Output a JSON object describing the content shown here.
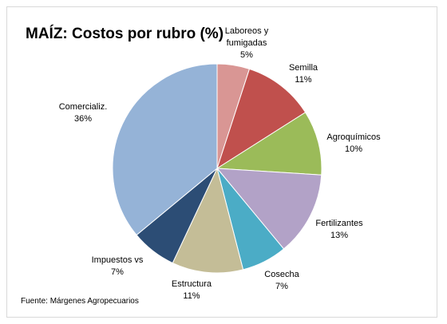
{
  "chart_data": {
    "type": "pie",
    "title": "MAÍZ: Costos por rubro (%)",
    "source": "Fuente: Márgenes Agropecuarios",
    "slices": [
      {
        "label": [
          "Laboreos y",
          "fumigadas"
        ],
        "value": 5,
        "display": "5%",
        "color": "#d99694"
      },
      {
        "label": [
          "Semilla"
        ],
        "value": 11,
        "display": "11%",
        "color": "#c0504d"
      },
      {
        "label": [
          "Agroquímicos"
        ],
        "value": 10,
        "display": "10%",
        "color": "#9bbb59"
      },
      {
        "label": [
          "Fertilizantes"
        ],
        "value": 13,
        "display": "13%",
        "color": "#b2a2c7"
      },
      {
        "label": [
          "Cosecha"
        ],
        "value": 7,
        "display": "7%",
        "color": "#4bacc6"
      },
      {
        "label": [
          "Estructura"
        ],
        "value": 11,
        "display": "11%",
        "color": "#c4bd97"
      },
      {
        "label": [
          "Impuestos vs"
        ],
        "value": 7,
        "display": "7%",
        "color": "#2c4d75"
      },
      {
        "label": [
          "Comercializ."
        ],
        "value": 36,
        "display": "36%",
        "color": "#95b3d7"
      }
    ]
  }
}
